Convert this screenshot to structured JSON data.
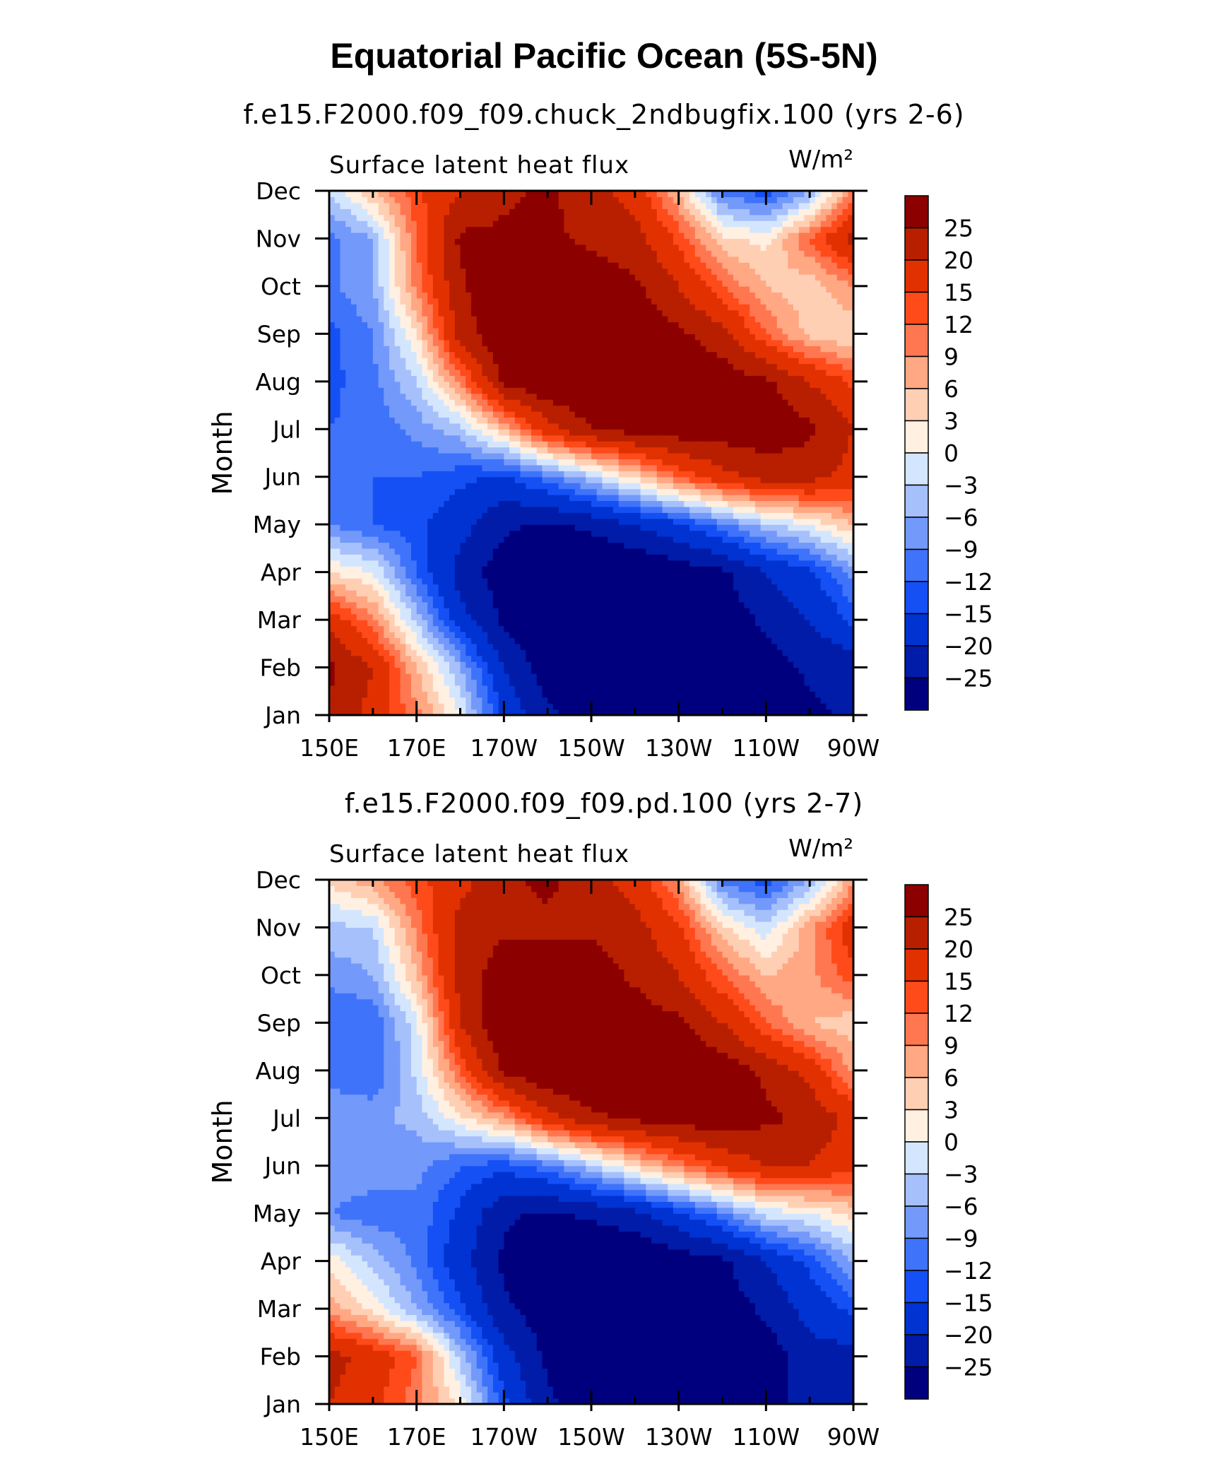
{
  "title": "Equatorial Pacific Ocean (5S-5N)",
  "chart_data": [
    {
      "type": "heatmap",
      "title": "f.e15.F2000.f09_f09.chuck_2ndbugfix.100 (yrs 2-6)",
      "subtitle": "Surface latent heat flux",
      "units": "W/m²",
      "xlabel": "",
      "ylabel": "Month",
      "x_ticks": [
        "150E",
        "170E",
        "170W",
        "150W",
        "130W",
        "110W",
        "90W"
      ],
      "y_ticks": [
        "Jan",
        "Feb",
        "Mar",
        "Apr",
        "May",
        "Jun",
        "Jul",
        "Aug",
        "Sep",
        "Oct",
        "Nov",
        "Dec"
      ],
      "x_lon": [
        150,
        160,
        170,
        180,
        190,
        200,
        210,
        220,
        230,
        240,
        250,
        260,
        270
      ],
      "months": [
        "Jan",
        "Feb",
        "Mar",
        "Apr",
        "May",
        "Jun",
        "Jul",
        "Aug",
        "Sep",
        "Oct",
        "Nov",
        "Dec"
      ],
      "z": [
        [
          24,
          18,
          10,
          0,
          -16,
          -24,
          -28,
          -28,
          -28,
          -28,
          -27,
          -26,
          -24
        ],
        [
          26,
          20,
          6,
          -6,
          -20,
          -28,
          -30,
          -30,
          -30,
          -30,
          -28,
          -24,
          -23
        ],
        [
          18,
          10,
          -4,
          -18,
          -26,
          -30,
          -30,
          -30,
          -30,
          -28,
          -24,
          -20,
          -14
        ],
        [
          3,
          0,
          -12,
          -22,
          -28,
          -30,
          -30,
          -30,
          -28,
          -26,
          -20,
          -16,
          -8
        ],
        [
          -9,
          -12,
          -14,
          -18,
          -24,
          -26,
          -24,
          -20,
          -16,
          -10,
          -4,
          0,
          6
        ],
        [
          -12,
          -12,
          -12,
          -14,
          -16,
          -10,
          -4,
          4,
          12,
          18,
          22,
          22,
          18
        ],
        [
          -12,
          -11,
          -8,
          -4,
          6,
          18,
          25,
          27,
          28,
          28,
          28,
          26,
          20
        ],
        [
          -13,
          -10,
          -3,
          10,
          26,
          30,
          30,
          30,
          30,
          28,
          26,
          20,
          14
        ],
        [
          -13,
          -9,
          3,
          22,
          30,
          30,
          30,
          30,
          26,
          22,
          12,
          5,
          3
        ],
        [
          -10,
          -6,
          10,
          24,
          30,
          30,
          28,
          26,
          20,
          12,
          6,
          4,
          9
        ],
        [
          -10,
          -6,
          12,
          26,
          26,
          26,
          24,
          22,
          14,
          4,
          2,
          12,
          22
        ],
        [
          -3,
          6,
          14,
          20,
          24,
          26,
          22,
          18,
          6,
          -10,
          -14,
          -6,
          10
        ]
      ],
      "contour_levels": [
        -25,
        -20,
        -15,
        -12,
        -9,
        -6,
        -3,
        0,
        3,
        6,
        9,
        12,
        15,
        20,
        25
      ],
      "colorbar_labels": [
        "25",
        "20",
        "15",
        "12",
        "9",
        "6",
        "3",
        "0",
        "−3",
        "−6",
        "−9",
        "−12",
        "−15",
        "−20",
        "−25"
      ]
    },
    {
      "type": "heatmap",
      "title": "f.e15.F2000.f09_f09.pd.100 (yrs 2-7)",
      "subtitle": "Surface latent heat flux",
      "units": "W/m²",
      "xlabel": "",
      "ylabel": "Month",
      "x_ticks": [
        "150E",
        "170E",
        "170W",
        "150W",
        "130W",
        "110W",
        "90W"
      ],
      "y_ticks": [
        "Jan",
        "Feb",
        "Mar",
        "Apr",
        "May",
        "Jun",
        "Jul",
        "Aug",
        "Sep",
        "Oct",
        "Nov",
        "Dec"
      ],
      "x_lon": [
        150,
        160,
        170,
        180,
        190,
        200,
        210,
        220,
        230,
        240,
        250,
        260,
        270
      ],
      "months": [
        "Jan",
        "Feb",
        "Mar",
        "Apr",
        "May",
        "Jun",
        "Jul",
        "Aug",
        "Sep",
        "Oct",
        "Nov",
        "Dec"
      ],
      "z": [
        [
          20,
          16,
          10,
          2,
          -14,
          -24,
          -28,
          -28,
          -28,
          -28,
          -26,
          -24,
          -22
        ],
        [
          22,
          18,
          12,
          -4,
          -18,
          -26,
          -30,
          -30,
          -30,
          -30,
          -28,
          -22,
          -22
        ],
        [
          8,
          2,
          -6,
          -14,
          -24,
          -28,
          -30,
          -30,
          -30,
          -28,
          -24,
          -18,
          -14
        ],
        [
          2,
          -4,
          -10,
          -18,
          -26,
          -30,
          -30,
          -30,
          -28,
          -26,
          -20,
          -14,
          -6
        ],
        [
          -9,
          -11,
          -10,
          -16,
          -24,
          -26,
          -24,
          -22,
          -16,
          -10,
          -2,
          0,
          4
        ],
        [
          -6,
          -7,
          -8,
          -12,
          -14,
          -10,
          -4,
          4,
          10,
          16,
          20,
          20,
          16
        ],
        [
          -6,
          -7,
          -5,
          2,
          8,
          18,
          24,
          26,
          28,
          28,
          26,
          24,
          18
        ],
        [
          -11,
          -12,
          -2,
          12,
          26,
          30,
          30,
          30,
          30,
          28,
          24,
          18,
          8
        ],
        [
          -12,
          -12,
          -1,
          20,
          30,
          30,
          30,
          28,
          26,
          20,
          12,
          6,
          4
        ],
        [
          -8,
          -6,
          6,
          22,
          28,
          28,
          28,
          24,
          20,
          12,
          6,
          8,
          14
        ],
        [
          -4,
          -3,
          10,
          22,
          24,
          24,
          24,
          22,
          16,
          4,
          -2,
          8,
          18
        ],
        [
          4,
          8,
          14,
          18,
          24,
          26,
          22,
          18,
          8,
          -10,
          -14,
          -6,
          8
        ]
      ],
      "contour_levels": [
        -25,
        -20,
        -15,
        -12,
        -9,
        -6,
        -3,
        0,
        3,
        6,
        9,
        12,
        15,
        20,
        25
      ],
      "colorbar_labels": [
        "25",
        "20",
        "15",
        "12",
        "9",
        "6",
        "3",
        "0",
        "−3",
        "−6",
        "−9",
        "−12",
        "−15",
        "−20",
        "−25"
      ]
    }
  ],
  "colors": {
    "palette": [
      "#00007f",
      "#001ca8",
      "#0033d1",
      "#1550f5",
      "#3f73fa",
      "#7399fa",
      "#a6c0fc",
      "#d4e6fe",
      "#fff0e1",
      "#ffcfb4",
      "#ffa883",
      "#ff7750",
      "#ff4a1a",
      "#e23100",
      "#b71f00",
      "#8c0000"
    ]
  }
}
